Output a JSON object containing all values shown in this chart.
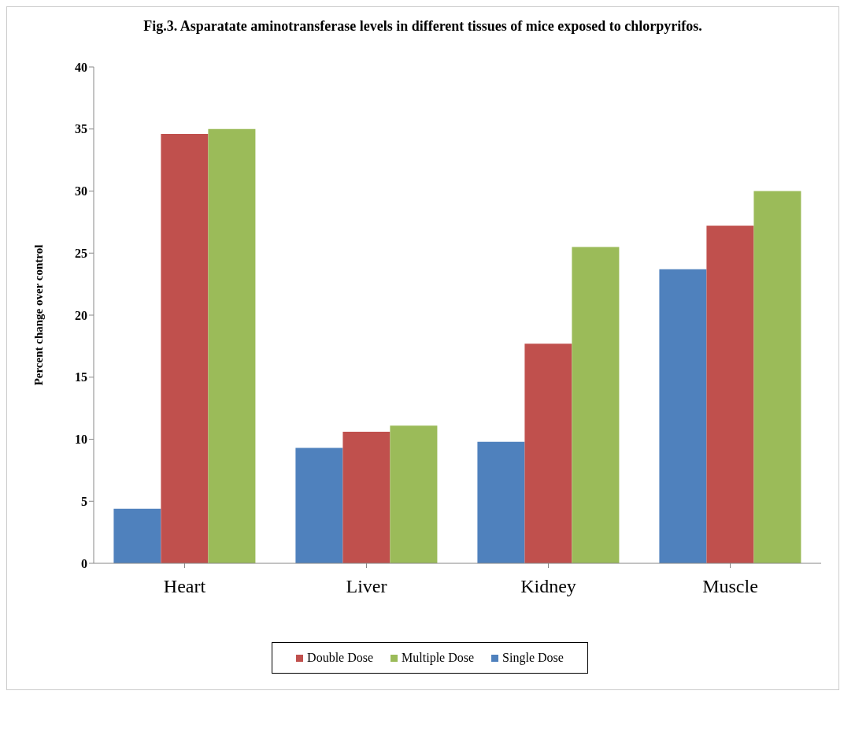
{
  "chart_data": {
    "type": "bar",
    "title": "Fig.3. Asparatate aminotransferase levels in different tissues of mice exposed to chlorpyrifos.",
    "ylabel": "Percent change over control",
    "categories": [
      "Heart",
      "Liver",
      "Kidney",
      "Muscle"
    ],
    "series": [
      {
        "name": "Single Dose",
        "color": "#4f81bd",
        "values": [
          4.4,
          9.3,
          9.8,
          23.7
        ]
      },
      {
        "name": "Double Dose",
        "color": "#c0504d",
        "values": [
          34.6,
          10.6,
          17.7,
          27.2
        ]
      },
      {
        "name": "Multiple Dose",
        "color": "#9bbb59",
        "values": [
          35.0,
          11.1,
          25.5,
          30.0
        ]
      }
    ],
    "ylim": [
      0,
      40
    ],
    "yticks": [
      0,
      5,
      10,
      15,
      20,
      25,
      30,
      35,
      40
    ],
    "grid": false,
    "legend": "bottom"
  }
}
